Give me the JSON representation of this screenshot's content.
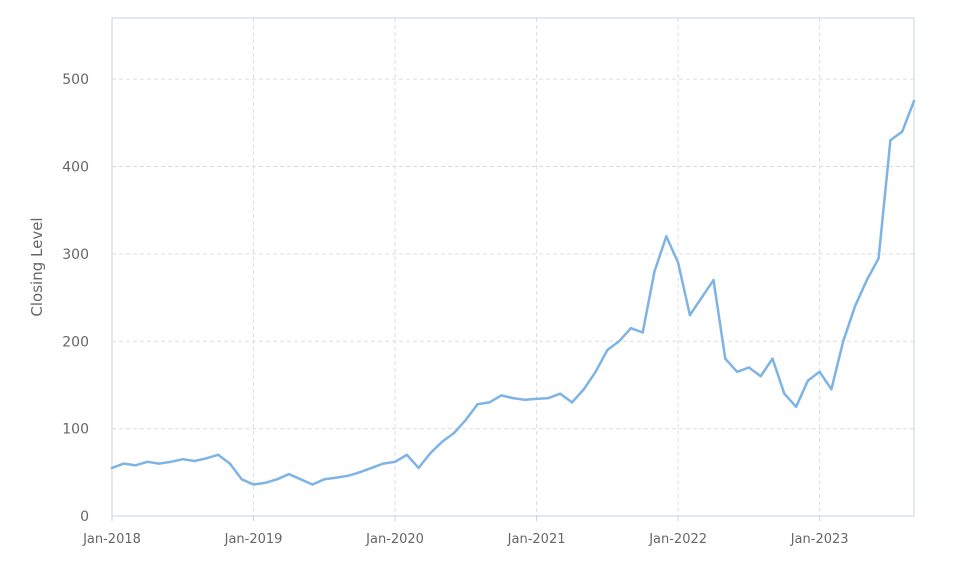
{
  "chart_data": {
    "type": "line",
    "title": "",
    "xlabel": "",
    "ylabel": "Closing Level",
    "x_tick_labels": [
      "Jan-2018",
      "Jan-2019",
      "Jan-2020",
      "Jan-2021",
      "Jan-2022",
      "Jan-2023"
    ],
    "y_ticks": [
      0,
      100,
      200,
      300,
      400,
      500
    ],
    "ylim": [
      0,
      570
    ],
    "xlim": [
      "2018-01",
      "2023-09"
    ],
    "grid": true,
    "line_color": "#7eb3e6",
    "series": [
      {
        "name": "",
        "x": [
          "2018-01",
          "2018-02",
          "2018-03",
          "2018-04",
          "2018-05",
          "2018-06",
          "2018-07",
          "2018-08",
          "2018-09",
          "2018-10",
          "2018-11",
          "2018-12",
          "2019-01",
          "2019-02",
          "2019-03",
          "2019-04",
          "2019-05",
          "2019-06",
          "2019-07",
          "2019-08",
          "2019-09",
          "2019-10",
          "2019-11",
          "2019-12",
          "2020-01",
          "2020-02",
          "2020-03",
          "2020-04",
          "2020-05",
          "2020-06",
          "2020-07",
          "2020-08",
          "2020-09",
          "2020-10",
          "2020-11",
          "2020-12",
          "2021-01",
          "2021-02",
          "2021-03",
          "2021-04",
          "2021-05",
          "2021-06",
          "2021-07",
          "2021-08",
          "2021-09",
          "2021-10",
          "2021-11",
          "2021-12",
          "2022-01",
          "2022-02",
          "2022-03",
          "2022-04",
          "2022-05",
          "2022-06",
          "2022-07",
          "2022-08",
          "2022-09",
          "2022-10",
          "2022-11",
          "2022-12",
          "2023-01",
          "2023-02",
          "2023-03",
          "2023-04",
          "2023-05",
          "2023-06",
          "2023-07",
          "2023-08",
          "2023-09"
        ],
        "values": [
          55,
          60,
          58,
          62,
          60,
          62,
          65,
          63,
          66,
          70,
          60,
          42,
          36,
          38,
          42,
          48,
          42,
          36,
          42,
          44,
          46,
          50,
          55,
          60,
          62,
          70,
          55,
          72,
          85,
          95,
          110,
          128,
          130,
          138,
          135,
          133,
          134,
          135,
          140,
          130,
          145,
          165,
          190,
          200,
          215,
          210,
          280,
          320,
          290,
          230,
          250,
          270,
          180,
          165,
          170,
          160,
          180,
          140,
          125,
          155,
          165,
          145,
          200,
          240,
          270,
          295,
          430,
          440,
          475
        ]
      }
    ]
  }
}
